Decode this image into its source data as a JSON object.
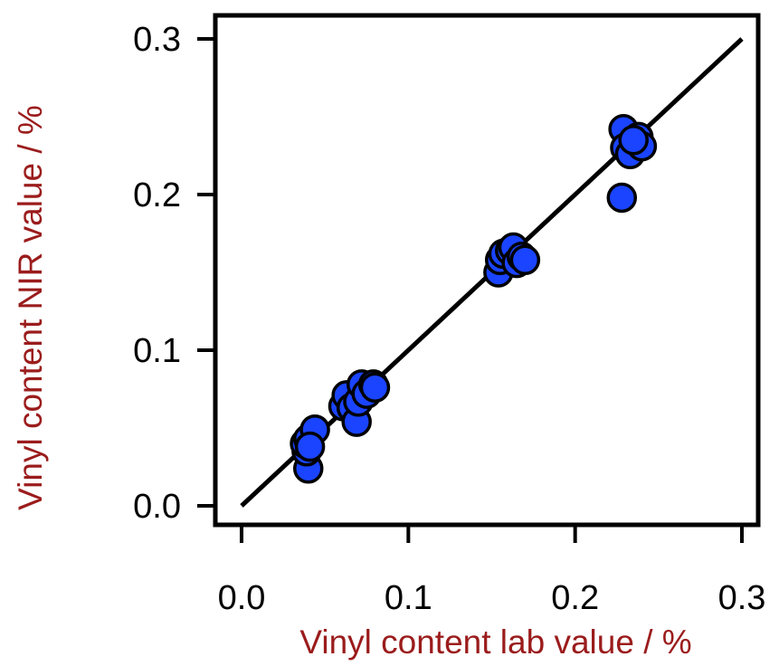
{
  "chart_data": {
    "type": "scatter",
    "xlabel": "Vinyl content lab value / %",
    "ylabel": "Vinyl content NIR value / %",
    "xlim": [
      0.0,
      0.3
    ],
    "ylim": [
      0.0,
      0.3
    ],
    "x_ticks": [
      "0.0",
      "0.1",
      "0.2",
      "0.3"
    ],
    "y_ticks": [
      "0.0",
      "0.1",
      "0.2",
      "0.3"
    ],
    "grid": false,
    "colors": {
      "points": "#1a44ff",
      "point_outline": "#000000",
      "line": "#000000",
      "axis_labels": "#9b1c1c"
    },
    "series": [
      {
        "type": "scatter",
        "points": [
          [
            0.04,
            0.024
          ],
          [
            0.039,
            0.035
          ],
          [
            0.038,
            0.04
          ],
          [
            0.04,
            0.043
          ],
          [
            0.044,
            0.049
          ],
          [
            0.041,
            0.038
          ],
          [
            0.061,
            0.064
          ],
          [
            0.063,
            0.071
          ],
          [
            0.066,
            0.063
          ],
          [
            0.069,
            0.054
          ],
          [
            0.07,
            0.067
          ],
          [
            0.072,
            0.078
          ],
          [
            0.075,
            0.072
          ],
          [
            0.079,
            0.078
          ],
          [
            0.08,
            0.076
          ],
          [
            0.154,
            0.15
          ],
          [
            0.155,
            0.158
          ],
          [
            0.157,
            0.162
          ],
          [
            0.161,
            0.164
          ],
          [
            0.163,
            0.166
          ],
          [
            0.165,
            0.156
          ],
          [
            0.168,
            0.16
          ],
          [
            0.17,
            0.158
          ],
          [
            0.228,
            0.198
          ],
          [
            0.229,
            0.242
          ],
          [
            0.23,
            0.23
          ],
          [
            0.233,
            0.226
          ],
          [
            0.238,
            0.237
          ],
          [
            0.24,
            0.231
          ],
          [
            0.235,
            0.235
          ]
        ]
      },
      {
        "type": "line",
        "x": [
          0.0,
          0.3
        ],
        "y": [
          0.0,
          0.3
        ]
      }
    ]
  }
}
